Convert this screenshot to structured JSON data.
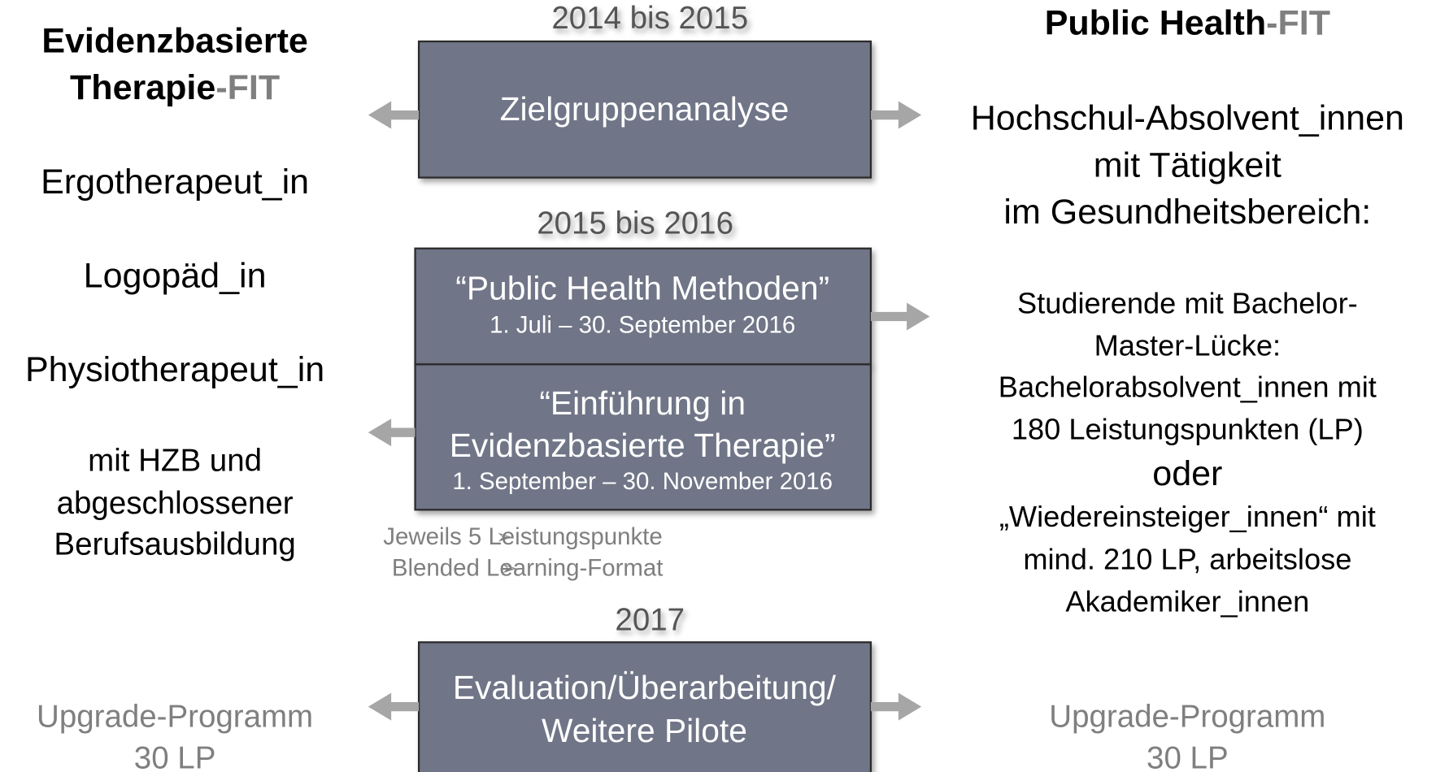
{
  "left": {
    "title_line1": "Evidenzbasierte",
    "title_line2": "Therapie",
    "title_suffix": "-FIT",
    "professions": [
      "Ergotherapeut_in",
      "Logopäd_in",
      "Physiotherapeut_in"
    ],
    "requirement": [
      "mit HZB und",
      "abgeschlossener",
      "Berufsausbildung"
    ],
    "upgrade": [
      "Upgrade-Programm",
      "30 LP"
    ]
  },
  "center": {
    "phases": [
      {
        "period": "2014 bis 2015",
        "boxes": [
          {
            "title": [
              "Zielgruppenanalyse"
            ]
          }
        ]
      },
      {
        "period": "2015 bis 2016",
        "boxes": [
          {
            "title": [
              "“Public Health Methoden”"
            ],
            "date": "1. Juli – 30. September 2016"
          },
          {
            "title": [
              "“Einführung in",
              "Evidenzbasierte Therapie”"
            ],
            "date": "1. September – 30. November 2016"
          }
        ],
        "notes": [
          "Jeweils 5 Leistungspunkte",
          "Blended Learning-Format"
        ]
      },
      {
        "period": "2017",
        "boxes": [
          {
            "title": [
              "Evaluation/Überarbeitung/",
              "Weitere Pilote"
            ]
          }
        ]
      }
    ]
  },
  "right": {
    "title": "Public Health",
    "title_suffix": "-FIT",
    "target": [
      "Hochschul-Absolvent_innen",
      "mit Tätigkeit",
      "im Gesundheitsbereich:"
    ],
    "details": [
      "Studierende mit Bachelor-",
      "Master-Lücke:",
      "Bachelorabsolvent_innen mit",
      "180 Leistungspunkten (LP)",
      "oder",
      "„Wiedereinsteiger_innen“ mit",
      "mind. 210 LP, arbeitslose",
      "Akademiker_innen"
    ],
    "upgrade": [
      "Upgrade-Programm",
      "30 LP"
    ]
  }
}
